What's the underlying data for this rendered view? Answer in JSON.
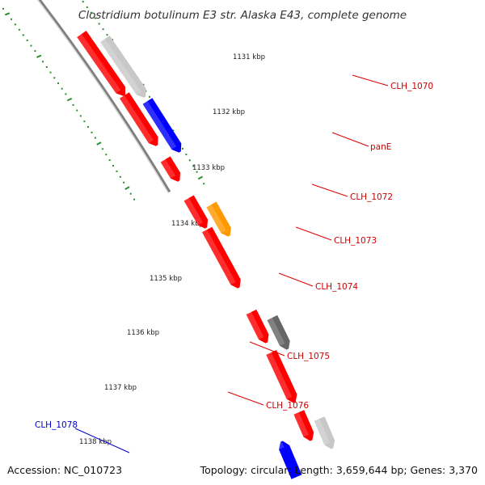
{
  "title": "Clostridium botulinum E3 str. Alaska E43, complete genome",
  "footer": {
    "accession": "Accession: NC_010723",
    "topology": "Topology: circular; Length: 3,659,644 bp; Genes: 3,370"
  },
  "colors": {
    "backbone": "#808080",
    "tick": "#2e8b2e",
    "forward_gene": "#ff0000",
    "pseudo_gene": "#c8c8c8",
    "blue_gene": "#0000ff",
    "orange_gene": "#ff9900",
    "dark_gene": "#666666",
    "label_red": "#cc0000",
    "label_blue": "#0000cc"
  },
  "ticks": [
    "1131 kbp",
    "1132 kbp",
    "1133 kbp",
    "1134 kbp",
    "1135 kbp",
    "1136 kbp",
    "1137 kbp",
    "1138 kbp"
  ],
  "gene_labels": [
    "CLH_1070",
    "panE",
    "CLH_1072",
    "CLH_1073",
    "CLH_1074",
    "CLH_1075",
    "CLH_1076",
    "CLH_1078"
  ],
  "genes": [
    {
      "type": "red"
    },
    {
      "type": "grey"
    },
    {
      "type": "red"
    },
    {
      "type": "blue"
    },
    {
      "type": "red"
    },
    {
      "type": "red"
    },
    {
      "type": "orange"
    },
    {
      "type": "red"
    },
    {
      "type": "red"
    },
    {
      "type": "dark"
    },
    {
      "type": "red"
    },
    {
      "type": "red"
    },
    {
      "type": "grey"
    },
    {
      "type": "blue"
    }
  ]
}
